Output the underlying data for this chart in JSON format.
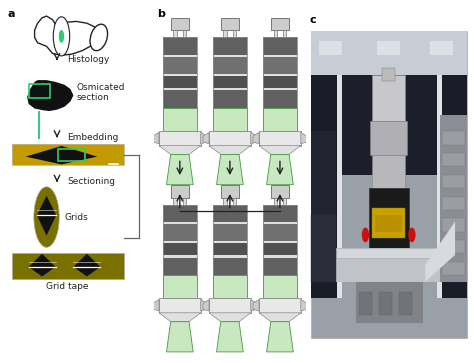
{
  "panel_a_label": "a",
  "panel_b_label": "b",
  "panel_c_label": "c",
  "label_histology": "Histology",
  "label_osmicated": "Osmicated\nsection",
  "label_embedding": "Embedding",
  "label_sectioning": "Sectioning",
  "label_grids": "Grids",
  "label_grid_tape": "Grid tape",
  "bg_color": "#ffffff",
  "dark_color": "#222222",
  "green_color": "#2ecc71",
  "green_light": "#c8e8c0",
  "green_border": "#449944",
  "olive_color": "#7a7000",
  "gold_color": "#c8a000",
  "gray_color": "#888888",
  "font_size": 6.5,
  "font_size_panel": 8
}
